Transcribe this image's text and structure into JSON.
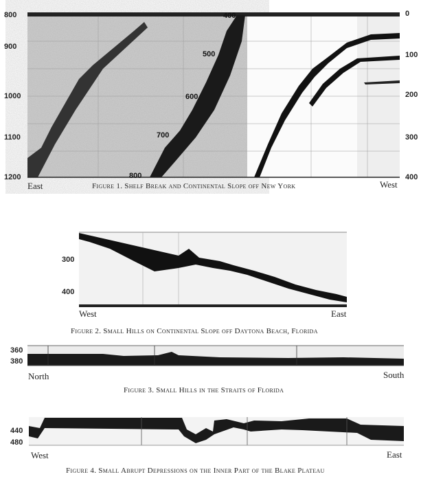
{
  "figures": [
    {
      "caption": "Figure 1. Shelf Break and Continental Slope off New York",
      "left_axis": [
        "800",
        "900",
        "1000",
        "1100",
        "1200"
      ],
      "right_axis": [
        "0",
        "100",
        "200",
        "300",
        "400"
      ],
      "left_direction": "East",
      "right_direction": "West",
      "trace_labels": [
        "400",
        "500",
        "600",
        "700",
        "800"
      ]
    },
    {
      "caption": "Figure 2. Small Hills on Continental Slope off Daytona Beach, Florida",
      "left_axis": [
        "300",
        "400"
      ],
      "left_direction": "West",
      "right_direction": "East"
    },
    {
      "caption": "Figure 3. Small Hills in the Straits of Florida",
      "left_axis": [
        "360",
        "380"
      ],
      "left_direction": "North",
      "right_direction": "South"
    },
    {
      "caption": "Figure 4. Small Abrupt Depressions on the Inner Part of the Blake Plateau",
      "left_axis": [
        "440",
        "480"
      ],
      "left_direction": "West",
      "right_direction": "East"
    }
  ]
}
